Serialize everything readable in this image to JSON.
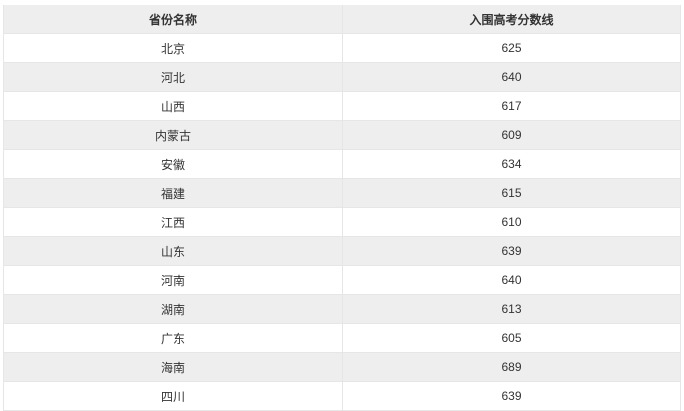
{
  "table": {
    "headers": [
      "省份名称",
      "入围高考分数线"
    ],
    "rows": [
      [
        "北京",
        "625"
      ],
      [
        "河北",
        "640"
      ],
      [
        "山西",
        "617"
      ],
      [
        "内蒙古",
        "609"
      ],
      [
        "安徽",
        "634"
      ],
      [
        "福建",
        "615"
      ],
      [
        "江西",
        "610"
      ],
      [
        "山东",
        "639"
      ],
      [
        "河南",
        "640"
      ],
      [
        "湖南",
        "613"
      ],
      [
        "广东",
        "605"
      ],
      [
        "海南",
        "689"
      ],
      [
        "四川",
        "639"
      ]
    ]
  }
}
